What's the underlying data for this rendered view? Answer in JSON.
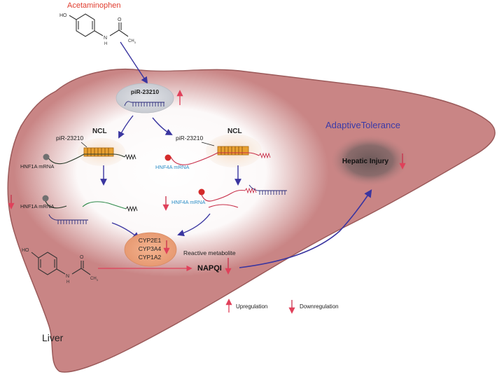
{
  "labels": {
    "acetaminophen": "Acetaminophen",
    "pir": "piR-23210",
    "ncl": "NCL",
    "hnf1a_mrna": "HNF1A mRNA",
    "hnf4a_mrna": "HNF4A mRNA",
    "adaptive_tolerance": "AdaptiveTolerance",
    "hepatic_injury": "Hepatic Injury",
    "cyp2e1": "CYP2E1",
    "cyp3a4": "CYP3A4",
    "cyp1a2": "CYP1A2",
    "reactive_metabolite": "Reactive metabolite",
    "napqi": "NAPQI",
    "liver": "Liver",
    "ho": "HO",
    "h": "H",
    "n": "N",
    "o": "O",
    "ch3": "CH",
    "three": "3"
  },
  "legend": {
    "up": "Upregulation",
    "down": "Downregulation"
  },
  "colors": {
    "liver": "#c98585",
    "liver_edge": "#9b5a5a",
    "up_arrow": "#e0405a",
    "down_arrow": "#c8304a",
    "pathway_arrow": "#3a35a0",
    "title_red": "#e03c2e",
    "tolerance_blue": "#3a3aa8",
    "hnf4a_blue": "#2c8ec6",
    "ncl_orange": "#e8a030"
  }
}
